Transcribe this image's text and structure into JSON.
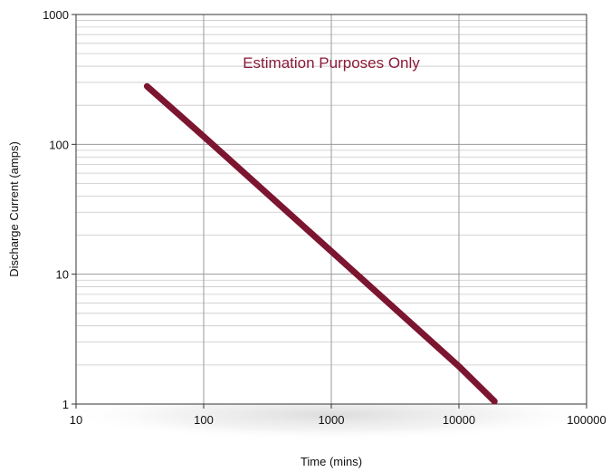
{
  "chart_data": {
    "type": "line",
    "xscale": "log",
    "yscale": "log",
    "xlim": [
      10,
      100000
    ],
    "ylim": [
      1,
      1000
    ],
    "xlabel": "Time (mins)",
    "ylabel": "Discharge Current (amps)",
    "x_ticks": [
      "10",
      "100",
      "1000",
      "10000",
      "100000"
    ],
    "y_ticks": [
      "1",
      "10",
      "100",
      "1000"
    ],
    "annotation": "Estimation Purposes Only",
    "grid": true,
    "series": [
      {
        "color": "#7b1530",
        "x": [
          36,
          100,
          1000,
          10000,
          19000
        ],
        "y": [
          280,
          115,
          15,
          1.95,
          1.05
        ]
      }
    ]
  },
  "colors": {
    "line": "#7b1530",
    "annotation": "#8b1a3a",
    "grid": "#c8c8c8",
    "axis": "#333333"
  }
}
